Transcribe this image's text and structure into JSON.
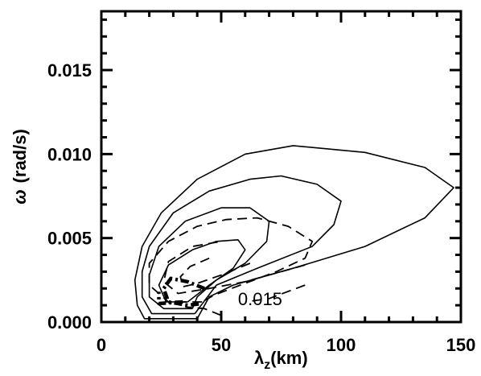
{
  "chart_data": {
    "type": "contour",
    "xlabel": {
      "main": "λ",
      "sub": "z",
      "rest": "(km)"
    },
    "ylabel": {
      "symbol": "ω",
      "rest": "(rad/s)"
    },
    "xlim": [
      0,
      150
    ],
    "ylim": [
      0,
      0.0185
    ],
    "x_ticks": [
      {
        "value": 0,
        "label": "0"
      },
      {
        "value": 50,
        "label": "50"
      },
      {
        "value": 100,
        "label": "100"
      },
      {
        "value": 150,
        "label": "150"
      }
    ],
    "y_ticks": [
      {
        "value": 0.0,
        "label": "0.000"
      },
      {
        "value": 0.005,
        "label": "0.005"
      },
      {
        "value": 0.01,
        "label": "0.010"
      },
      {
        "value": 0.015,
        "label": "0.015"
      }
    ],
    "annotations": [
      {
        "text": "0.015",
        "x": 57,
        "y": 0.0012
      }
    ],
    "series": [
      {
        "style": "solid",
        "points": [
          [
            40,
            0.0002
          ],
          [
            18,
            0.0002
          ],
          [
            15,
            0.001
          ],
          [
            14,
            0.0025
          ],
          [
            17,
            0.0045
          ],
          [
            25,
            0.0065
          ],
          [
            40,
            0.0085
          ],
          [
            60,
            0.01
          ],
          [
            80,
            0.0105
          ],
          [
            110,
            0.0101
          ],
          [
            135,
            0.0092
          ],
          [
            147,
            0.008
          ],
          [
            135,
            0.0062
          ],
          [
            110,
            0.0045
          ],
          [
            80,
            0.0032
          ],
          [
            55,
            0.0022
          ],
          [
            45,
            0.0015
          ],
          [
            40,
            0.0002
          ]
        ]
      },
      {
        "style": "solid",
        "points": [
          [
            39,
            0.0005
          ],
          [
            21,
            0.0005
          ],
          [
            17,
            0.0015
          ],
          [
            17,
            0.003
          ],
          [
            20,
            0.0045
          ],
          [
            30,
            0.0065
          ],
          [
            45,
            0.0078
          ],
          [
            62,
            0.0085
          ],
          [
            75,
            0.0087
          ],
          [
            90,
            0.0082
          ],
          [
            100,
            0.0072
          ],
          [
            97,
            0.0058
          ],
          [
            88,
            0.0045
          ],
          [
            65,
            0.0032
          ],
          [
            48,
            0.0022
          ],
          [
            39,
            0.0005
          ]
        ]
      },
      {
        "style": "solid",
        "points": [
          [
            38,
            0.0008
          ],
          [
            26,
            0.0008
          ],
          [
            20,
            0.0015
          ],
          [
            20,
            0.0028
          ],
          [
            24,
            0.0045
          ],
          [
            35,
            0.006
          ],
          [
            50,
            0.0068
          ],
          [
            62,
            0.0068
          ],
          [
            70,
            0.006
          ],
          [
            69,
            0.0048
          ],
          [
            60,
            0.0035
          ],
          [
            48,
            0.0025
          ],
          [
            40,
            0.0015
          ],
          [
            38,
            0.0008
          ]
        ]
      },
      {
        "style": "solid",
        "points": [
          [
            36,
            0.0012
          ],
          [
            27,
            0.0012
          ],
          [
            24,
            0.0022
          ],
          [
            28,
            0.0034
          ],
          [
            38,
            0.0043
          ],
          [
            48,
            0.0048
          ],
          [
            57,
            0.0049
          ],
          [
            60,
            0.0043
          ],
          [
            55,
            0.0032
          ],
          [
            45,
            0.0022
          ],
          [
            36,
            0.0012
          ]
        ]
      },
      {
        "style": "dashed",
        "points": [
          [
            42,
            0.0012
          ],
          [
            28,
            0.0012
          ],
          [
            20,
            0.0022
          ],
          [
            20,
            0.0035
          ],
          [
            28,
            0.0048
          ],
          [
            40,
            0.0057
          ],
          [
            52,
            0.0061
          ],
          [
            65,
            0.0062
          ],
          [
            78,
            0.0057
          ],
          [
            88,
            0.0048
          ],
          [
            85,
            0.0038
          ],
          [
            73,
            0.003
          ],
          [
            58,
            0.0022
          ],
          [
            47,
            0.0016
          ],
          [
            42,
            0.0012
          ]
        ]
      },
      {
        "style": "dashed",
        "points": [
          [
            85,
            0.0034
          ],
          [
            60,
            0.0024
          ],
          [
            45,
            0.002
          ],
          [
            32,
            0.0017
          ],
          [
            26,
            0.0024
          ],
          [
            28,
            0.0036
          ],
          [
            38,
            0.0045
          ],
          [
            50,
            0.0048
          ]
        ]
      },
      {
        "style": "dashed",
        "points": [
          [
            62,
            0.0035
          ],
          [
            50,
            0.0028
          ],
          [
            40,
            0.0023
          ],
          [
            34,
            0.0021
          ],
          [
            33,
            0.0027
          ],
          [
            37,
            0.0033
          ],
          [
            45,
            0.0038
          ]
        ]
      },
      {
        "style": "dashed",
        "points": [
          [
            85,
            0.0022
          ],
          [
            70,
            0.0014
          ],
          [
            60,
            0.0012
          ]
        ]
      },
      {
        "style": "dashed",
        "points": [
          [
            50,
            0.0004
          ],
          [
            43,
            0.0008
          ],
          [
            35,
            0.0009
          ]
        ]
      },
      {
        "style": "dashdot-thick",
        "points": [
          [
            43,
            0.002
          ],
          [
            36,
            0.0024
          ],
          [
            29,
            0.0026
          ],
          [
            26,
            0.002
          ],
          [
            28,
            0.0012
          ],
          [
            36,
            0.001
          ],
          [
            42,
            0.0011
          ]
        ]
      },
      {
        "style": "dashdot-thick",
        "points": [
          [
            34,
            0.0012
          ],
          [
            24,
            0.0011
          ],
          [
            24,
            0.0018
          ]
        ]
      }
    ]
  }
}
